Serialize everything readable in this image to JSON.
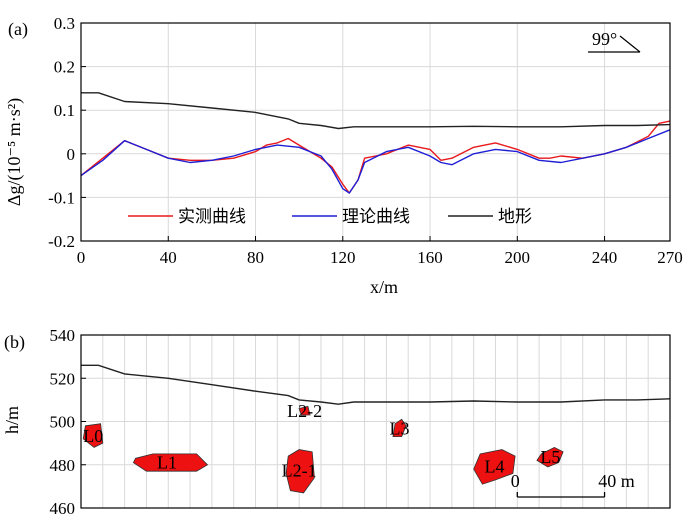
{
  "chart_data": [
    {
      "type": "line",
      "panel_label": "(a)",
      "ylabel": "Δg/(10⁻⁵ m·s²)",
      "xlabel": "x/m",
      "xlim": [
        0,
        270
      ],
      "ylim": [
        -0.2,
        0.3
      ],
      "xticks": [
        "0",
        "40",
        "80",
        "120",
        "160",
        "200",
        "240",
        "270"
      ],
      "yticks": [
        "0.3",
        "0.2",
        "0.1",
        "0",
        "-0.1",
        "-0.2"
      ],
      "annotation": "99°",
      "colors": {
        "measured": "#e8191c",
        "theoretical": "#1f1fd6",
        "terrain": "#222222"
      },
      "series": [
        {
          "name": "实测曲线",
          "x": [
            0,
            10,
            20,
            30,
            40,
            50,
            60,
            70,
            80,
            85,
            90,
            95,
            100,
            110,
            115,
            120,
            123,
            127,
            130,
            135,
            140,
            150,
            160,
            165,
            170,
            180,
            190,
            200,
            210,
            215,
            220,
            230,
            240,
            250,
            260,
            265,
            270
          ],
          "y": [
            -0.05,
            -0.01,
            0.03,
            0.01,
            -0.01,
            -0.015,
            -0.015,
            -0.01,
            0.005,
            0.02,
            0.025,
            0.035,
            0.02,
            -0.01,
            -0.03,
            -0.07,
            -0.09,
            -0.06,
            -0.01,
            -0.005,
            0.0,
            0.02,
            0.01,
            -0.015,
            -0.01,
            0.015,
            0.025,
            0.01,
            -0.01,
            -0.01,
            -0.005,
            -0.01,
            0.0,
            0.015,
            0.04,
            0.07,
            0.075
          ]
        },
        {
          "name": "理论曲线",
          "x": [
            0,
            10,
            20,
            30,
            40,
            50,
            60,
            70,
            80,
            90,
            100,
            110,
            115,
            120,
            123,
            127,
            130,
            140,
            150,
            160,
            165,
            170,
            180,
            190,
            200,
            210,
            220,
            230,
            240,
            250,
            260,
            270
          ],
          "y": [
            -0.05,
            -0.015,
            0.03,
            0.01,
            -0.01,
            -0.02,
            -0.015,
            -0.005,
            0.01,
            0.02,
            0.015,
            -0.005,
            -0.035,
            -0.08,
            -0.09,
            -0.06,
            -0.02,
            0.005,
            0.015,
            -0.005,
            -0.02,
            -0.025,
            0.0,
            0.01,
            0.005,
            -0.015,
            -0.02,
            -0.01,
            0.0,
            0.015,
            0.035,
            0.055
          ]
        },
        {
          "name": "地形",
          "x": [
            0,
            8,
            20,
            40,
            60,
            80,
            95,
            100,
            110,
            118,
            125,
            140,
            160,
            180,
            200,
            220,
            240,
            255,
            270
          ],
          "y": [
            0.14,
            0.14,
            0.12,
            0.115,
            0.105,
            0.095,
            0.08,
            0.07,
            0.065,
            0.058,
            0.062,
            0.062,
            0.062,
            0.063,
            0.062,
            0.062,
            0.065,
            0.065,
            0.067
          ]
        }
      ]
    },
    {
      "type": "diagram",
      "panel_label": "(b)",
      "ylabel": "h/m",
      "ylim": [
        460,
        540
      ],
      "xlim": [
        0,
        270
      ],
      "yticks": [
        "540",
        "520",
        "500",
        "480",
        "460"
      ],
      "scale_bar": {
        "start_label": "0",
        "end_label": "40 m",
        "length": 40,
        "start_x": 200
      },
      "body_color": "#ee1111",
      "terrain": {
        "x": [
          0,
          8,
          20,
          40,
          60,
          80,
          95,
          100,
          110,
          118,
          125,
          140,
          160,
          180,
          200,
          220,
          240,
          255,
          270
        ],
        "h": [
          526,
          526,
          522,
          520,
          517,
          514,
          512,
          510,
          509,
          508,
          509,
          509,
          509,
          509.5,
          509,
          509,
          510,
          510,
          510.5
        ]
      },
      "bodies": [
        {
          "label": "L0",
          "points": [
            [
              2,
              498
            ],
            [
              9,
              499
            ],
            [
              10,
              490
            ],
            [
              6,
              488
            ],
            [
              1,
              492
            ]
          ]
        },
        {
          "label": "L1",
          "points": [
            [
              25,
              483
            ],
            [
              33,
              485
            ],
            [
              53,
              485
            ],
            [
              58,
              480
            ],
            [
              53,
              477
            ],
            [
              30,
              477
            ],
            [
              24,
              481
            ]
          ]
        },
        {
          "label": "L2-1",
          "points": [
            [
              95,
              484
            ],
            [
              100,
              487
            ],
            [
              106,
              486
            ],
            [
              107,
              474
            ],
            [
              102,
              467
            ],
            [
              96,
              468
            ],
            [
              94,
              476
            ]
          ]
        },
        {
          "label": "L2-2",
          "points": [
            [
              100,
              506
            ],
            [
              104,
              507
            ],
            [
              105,
              503
            ],
            [
              101,
              503
            ]
          ]
        },
        {
          "label": "L3",
          "points": [
            [
              144,
              499
            ],
            [
              147,
              501
            ],
            [
              149,
              498
            ],
            [
              147,
              493
            ],
            [
              143,
              493
            ]
          ]
        },
        {
          "label": "L4",
          "points": [
            [
              183,
              485
            ],
            [
              193,
              487
            ],
            [
              199,
              484
            ],
            [
              198,
              476
            ],
            [
              190,
              473
            ],
            [
              184,
              471
            ],
            [
              180,
              478
            ]
          ]
        },
        {
          "label": "L5",
          "points": [
            [
              211,
              485
            ],
            [
              217,
              488
            ],
            [
              221,
              486
            ],
            [
              219,
              481
            ],
            [
              214,
              479
            ],
            [
              209,
              482
            ]
          ]
        }
      ]
    }
  ]
}
